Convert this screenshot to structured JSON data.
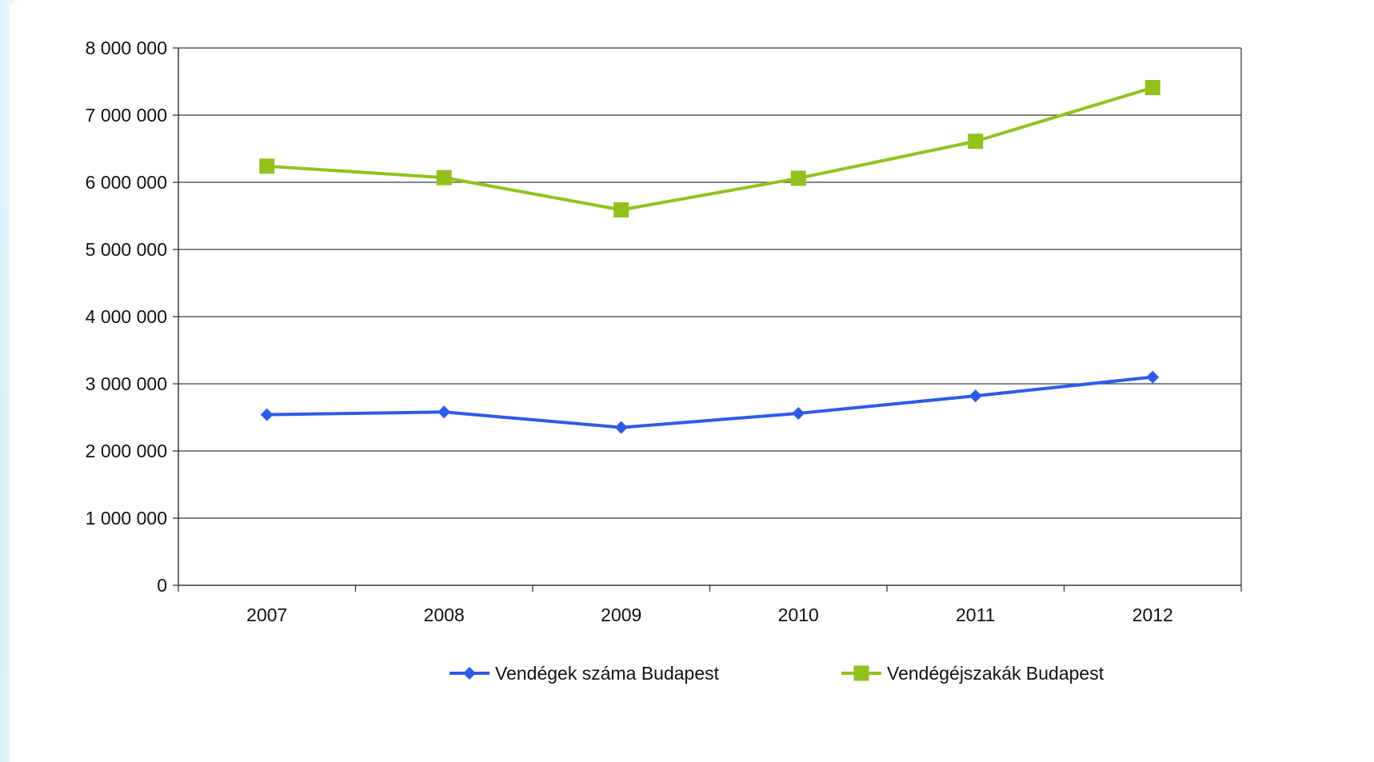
{
  "chart_data": {
    "type": "line",
    "categories": [
      "2007",
      "2008",
      "2009",
      "2010",
      "2011",
      "2012"
    ],
    "series": [
      {
        "name": "Vendégek száma Budapest",
        "color": "#2e5be6",
        "marker": "diamond",
        "values": [
          2540000,
          2580000,
          2350000,
          2560000,
          2820000,
          3100000
        ]
      },
      {
        "name": "Vendégéjszakák Budapest",
        "color": "#92c11e",
        "marker": "square",
        "values": [
          6240000,
          6070000,
          5590000,
          6060000,
          6610000,
          7410000
        ]
      }
    ],
    "yticks": [
      "0",
      "1 000 000",
      "2 000 000",
      "3 000 000",
      "4 000 000",
      "5 000 000",
      "6 000 000",
      "7 000 000",
      "8 000 000"
    ],
    "ylim": [
      0,
      8000000
    ],
    "grid": true,
    "legend_position": "bottom",
    "title": "",
    "xlabel": "",
    "ylabel": ""
  }
}
